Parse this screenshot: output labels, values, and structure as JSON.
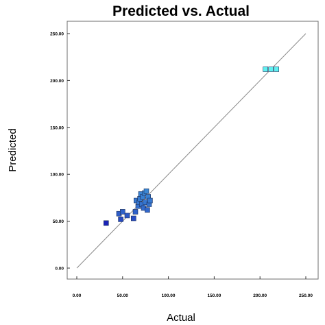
{
  "chart_data": {
    "type": "scatter",
    "title": "Predicted vs. Actual",
    "xlabel": "Actual",
    "ylabel": "Predicted",
    "xlim": [
      0,
      250
    ],
    "ylim": [
      0,
      250
    ],
    "xticks": [
      "0.00",
      "50.00",
      "100.00",
      "150.00",
      "200.00",
      "250.00"
    ],
    "yticks": [
      "0.00",
      "50.00",
      "100.00",
      "150.00",
      "200.00",
      "250.00"
    ],
    "grid": false,
    "reference_line": {
      "from": [
        0,
        0
      ],
      "to": [
        250,
        250
      ],
      "color": "#8a8a8a"
    },
    "color_low": "#1a23b8",
    "color_high": "#5ff0f0",
    "points": [
      {
        "x": 32,
        "y": 48
      },
      {
        "x": 46,
        "y": 58
      },
      {
        "x": 48,
        "y": 52
      },
      {
        "x": 50,
        "y": 60
      },
      {
        "x": 55,
        "y": 56
      },
      {
        "x": 62,
        "y": 53
      },
      {
        "x": 64,
        "y": 60
      },
      {
        "x": 65,
        "y": 72
      },
      {
        "x": 67,
        "y": 66
      },
      {
        "x": 68,
        "y": 70
      },
      {
        "x": 69,
        "y": 74
      },
      {
        "x": 70,
        "y": 79
      },
      {
        "x": 71,
        "y": 68
      },
      {
        "x": 72,
        "y": 76
      },
      {
        "x": 73,
        "y": 64
      },
      {
        "x": 74,
        "y": 80
      },
      {
        "x": 75,
        "y": 70
      },
      {
        "x": 76,
        "y": 82
      },
      {
        "x": 77,
        "y": 62
      },
      {
        "x": 78,
        "y": 76
      },
      {
        "x": 79,
        "y": 68
      },
      {
        "x": 80,
        "y": 72
      },
      {
        "x": 206,
        "y": 212
      },
      {
        "x": 212,
        "y": 212
      },
      {
        "x": 218,
        "y": 212
      }
    ]
  }
}
